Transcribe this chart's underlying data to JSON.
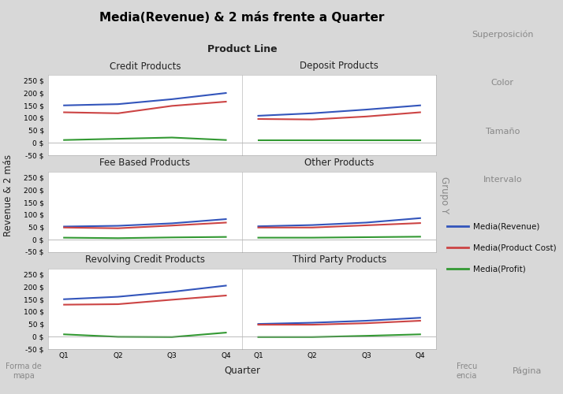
{
  "title": "Media(Revenue) & 2 más frente a Quarter",
  "xlabel": "Quarter",
  "ylabel": "Revenue & 2 más",
  "quarters": [
    "Q1",
    "Q2",
    "Q3",
    "Q4"
  ],
  "product_line_label": "Product Line",
  "subplots": [
    {
      "title": "Credit Products",
      "revenue": [
        150,
        155,
        175,
        200
      ],
      "product_cost": [
        122,
        118,
        148,
        165
      ],
      "profit": [
        10,
        15,
        20,
        10
      ]
    },
    {
      "title": "Deposit Products",
      "revenue": [
        108,
        118,
        133,
        150
      ],
      "product_cost": [
        95,
        93,
        105,
        122
      ],
      "profit": [
        8,
        8,
        8,
        8
      ]
    },
    {
      "title": "Fee Based Products",
      "revenue": [
        52,
        55,
        65,
        82
      ],
      "product_cost": [
        48,
        45,
        56,
        68
      ],
      "profit": [
        7,
        5,
        8,
        10
      ]
    },
    {
      "title": "Other Products",
      "revenue": [
        53,
        58,
        68,
        86
      ],
      "product_cost": [
        48,
        48,
        57,
        66
      ],
      "profit": [
        7,
        7,
        9,
        11
      ]
    },
    {
      "title": "Revolving Credit Products",
      "revenue": [
        150,
        160,
        180,
        205
      ],
      "product_cost": [
        128,
        130,
        148,
        165
      ],
      "profit": [
        8,
        -2,
        -3,
        15
      ]
    },
    {
      "title": "Third Party Products",
      "revenue": [
        50,
        55,
        63,
        75
      ],
      "product_cost": [
        47,
        47,
        53,
        63
      ],
      "profit": [
        -3,
        -3,
        2,
        8
      ]
    }
  ],
  "color_revenue": "#3355BB",
  "color_cost": "#CC4444",
  "color_profit": "#339933",
  "legend_labels": [
    "Media(Revenue)",
    "Media(Product Cost)",
    "Media(Profit)"
  ],
  "sidebar_buttons": [
    "Superposición",
    "Color",
    "Tamaño",
    "Intervalo"
  ],
  "bottom_left": "Forma de\nmapa",
  "bottom_right": "Página",
  "bottom_center": "Frecu\nencia",
  "ylim": [
    -50,
    275
  ],
  "yticks": [
    -50,
    0,
    50,
    100,
    150,
    200,
    250
  ],
  "bg_subplot": "#ffffff",
  "bg_header": "#e8e8de",
  "bg_sidebar_panel": "#ebebeb",
  "bg_sidebar_light": "#f0f0f0",
  "fig_bg": "#d8d8d8",
  "border_color": "#aaaaaa",
  "text_dark": "#222222",
  "text_gray": "#888888"
}
